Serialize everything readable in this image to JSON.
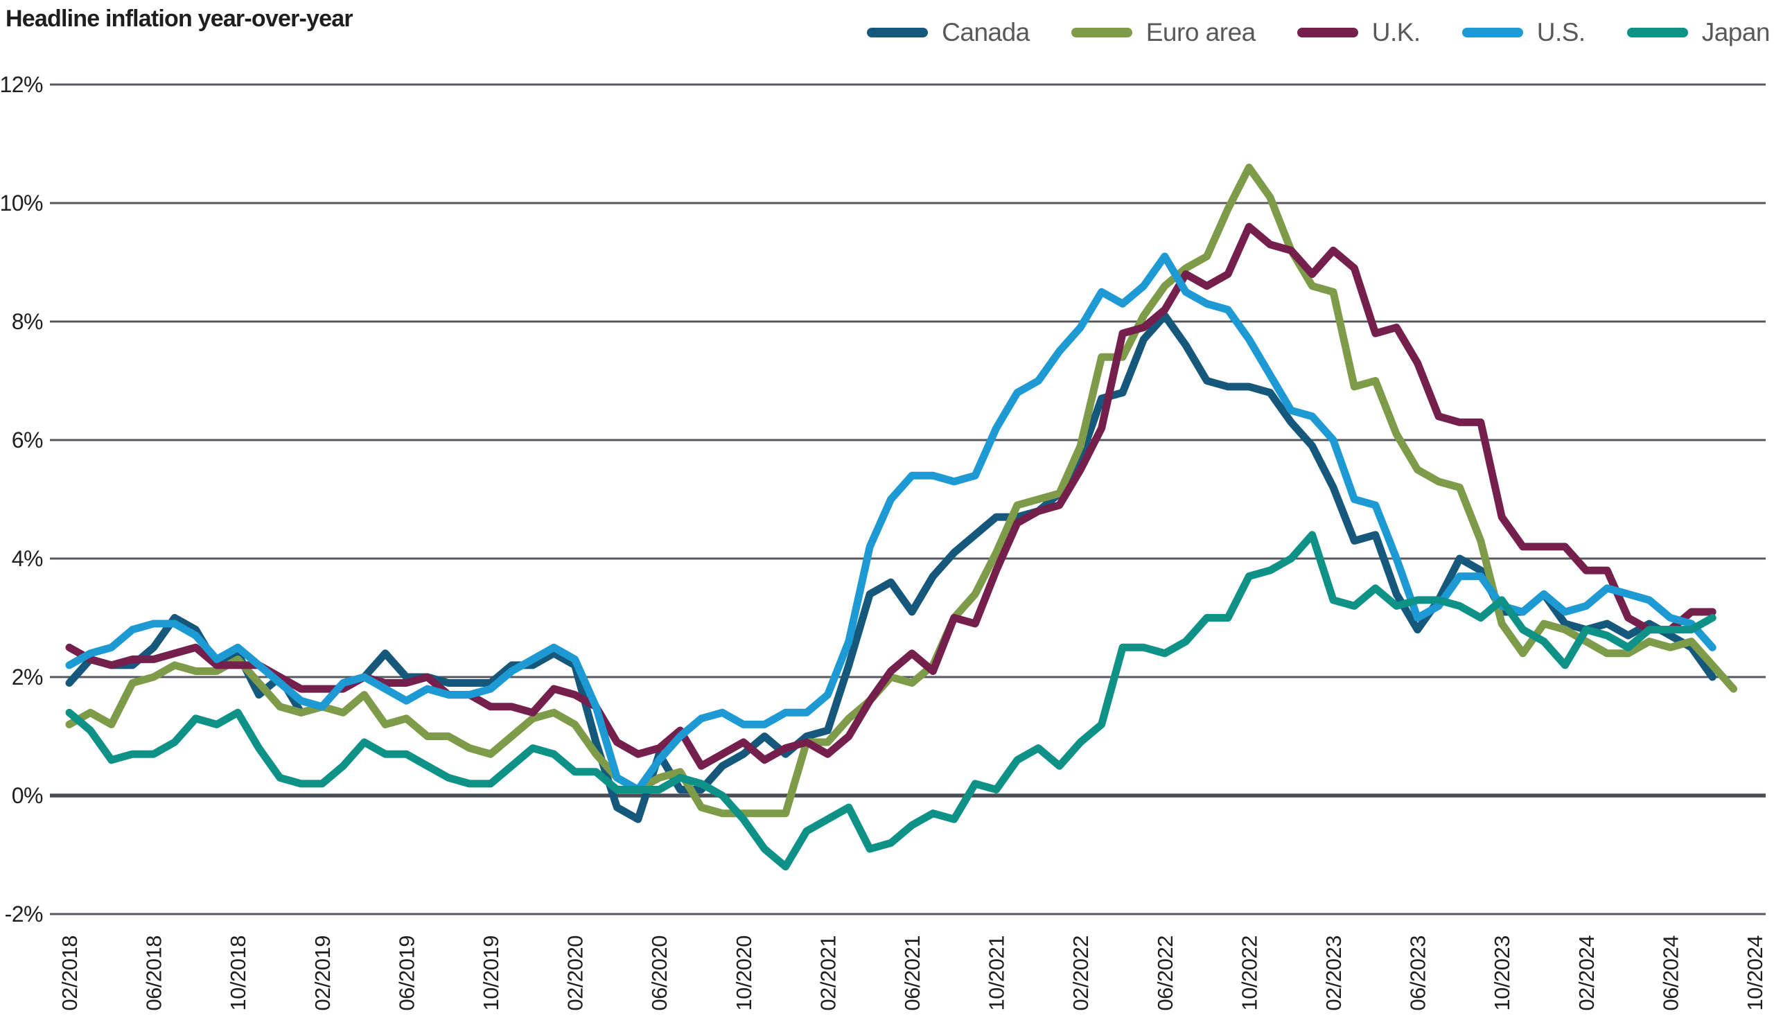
{
  "title": "Headline inflation year-over-year",
  "chart_data": {
    "type": "line",
    "title": "Headline inflation year-over-year",
    "x_start": "02/2018",
    "x_interval": "monthly",
    "grid": true,
    "legend_position": "top-right",
    "ylim": [
      -2,
      12
    ],
    "y_ticks": [
      {
        "label": "12%",
        "value": 12
      },
      {
        "label": "10%",
        "value": 10
      },
      {
        "label": "8%",
        "value": 8
      },
      {
        "label": "6%",
        "value": 6
      },
      {
        "label": "4%",
        "value": 4
      },
      {
        "label": "2%",
        "value": 2
      },
      {
        "label": "0%",
        "value": 0
      },
      {
        "label": "-2%",
        "value": -2
      }
    ],
    "x_tick_labels": [
      "02/2018",
      "06/2018",
      "10/2018",
      "02/2019",
      "06/2019",
      "10/2019",
      "02/2020",
      "06/2020",
      "10/2020",
      "02/2021",
      "06/2021",
      "10/2021",
      "02/2022",
      "06/2022",
      "10/2022",
      "02/2023",
      "06/2023",
      "10/2023",
      "02/2024",
      "06/2024",
      "10/2024"
    ],
    "series": [
      {
        "name": "Canada",
        "color": "#15587B",
        "values": [
          1.9,
          2.3,
          2.2,
          2.2,
          2.5,
          3.0,
          2.8,
          2.2,
          2.4,
          1.7,
          2.0,
          1.4,
          1.5,
          1.9,
          2.0,
          2.4,
          2.0,
          2.0,
          1.9,
          1.9,
          1.9,
          2.2,
          2.2,
          2.4,
          2.2,
          0.9,
          -0.2,
          -0.4,
          0.7,
          0.1,
          0.1,
          0.5,
          0.7,
          1.0,
          0.7,
          1.0,
          1.1,
          2.2,
          3.4,
          3.6,
          3.1,
          3.7,
          4.1,
          4.4,
          4.7,
          4.7,
          4.8,
          5.1,
          5.7,
          6.7,
          6.8,
          7.7,
          8.1,
          7.6,
          7.0,
          6.9,
          6.9,
          6.8,
          6.3,
          5.9,
          5.2,
          4.3,
          4.4,
          3.4,
          2.8,
          3.3,
          4.0,
          3.8,
          3.1,
          3.1,
          3.4,
          2.9,
          2.8,
          2.9,
          2.7,
          2.9,
          2.7,
          2.5,
          2.0
        ]
      },
      {
        "name": "Euro area",
        "color": "#7E9B49",
        "values": [
          1.2,
          1.4,
          1.2,
          1.9,
          2.0,
          2.2,
          2.1,
          2.1,
          2.3,
          1.9,
          1.5,
          1.4,
          1.5,
          1.4,
          1.7,
          1.2,
          1.3,
          1.0,
          1.0,
          0.8,
          0.7,
          1.0,
          1.3,
          1.4,
          1.2,
          0.7,
          0.3,
          0.1,
          0.3,
          0.4,
          -0.2,
          -0.3,
          -0.3,
          -0.3,
          -0.3,
          0.9,
          0.9,
          1.3,
          1.6,
          2.0,
          1.9,
          2.2,
          3.0,
          3.4,
          4.1,
          4.9,
          5.0,
          5.1,
          5.9,
          7.4,
          7.4,
          8.1,
          8.6,
          8.9,
          9.1,
          9.9,
          10.6,
          10.1,
          9.2,
          8.6,
          8.5,
          6.9,
          7.0,
          6.1,
          5.5,
          5.3,
          5.2,
          4.3,
          2.9,
          2.4,
          2.9,
          2.8,
          2.6,
          2.4,
          2.4,
          2.6,
          2.5,
          2.6,
          2.2,
          1.8
        ]
      },
      {
        "name": "U.K.",
        "color": "#751F4C",
        "values": [
          2.5,
          2.3,
          2.2,
          2.3,
          2.3,
          2.4,
          2.5,
          2.2,
          2.2,
          2.2,
          2.0,
          1.8,
          1.8,
          1.8,
          2.0,
          1.9,
          1.9,
          2.0,
          1.7,
          1.7,
          1.5,
          1.5,
          1.4,
          1.8,
          1.7,
          1.5,
          0.9,
          0.7,
          0.8,
          1.1,
          0.5,
          0.7,
          0.9,
          0.6,
          0.8,
          0.9,
          0.7,
          1.0,
          1.6,
          2.1,
          2.4,
          2.1,
          3.0,
          2.9,
          3.8,
          4.6,
          4.8,
          4.9,
          5.5,
          6.2,
          7.8,
          7.9,
          8.2,
          8.8,
          8.6,
          8.8,
          9.6,
          9.3,
          9.2,
          8.8,
          9.2,
          8.9,
          7.8,
          7.9,
          7.3,
          6.4,
          6.3,
          6.3,
          4.7,
          4.2,
          4.2,
          4.2,
          3.8,
          3.8,
          3.0,
          2.8,
          2.8,
          3.1,
          3.1
        ]
      },
      {
        "name": "U.S.",
        "color": "#1D99D4",
        "values": [
          2.2,
          2.4,
          2.5,
          2.8,
          2.9,
          2.9,
          2.7,
          2.3,
          2.5,
          2.2,
          1.9,
          1.6,
          1.5,
          1.9,
          2.0,
          1.8,
          1.6,
          1.8,
          1.7,
          1.7,
          1.8,
          2.1,
          2.3,
          2.5,
          2.3,
          1.5,
          0.3,
          0.1,
          0.6,
          1.0,
          1.3,
          1.4,
          1.2,
          1.2,
          1.4,
          1.4,
          1.7,
          2.6,
          4.2,
          5.0,
          5.4,
          5.4,
          5.3,
          5.4,
          6.2,
          6.8,
          7.0,
          7.5,
          7.9,
          8.5,
          8.3,
          8.6,
          9.1,
          8.5,
          8.3,
          8.2,
          7.7,
          7.1,
          6.5,
          6.4,
          6.0,
          5.0,
          4.9,
          4.0,
          3.0,
          3.2,
          3.7,
          3.7,
          3.2,
          3.1,
          3.4,
          3.1,
          3.2,
          3.5,
          3.4,
          3.3,
          3.0,
          2.9,
          2.5
        ]
      },
      {
        "name": "Japan",
        "color": "#0E9187",
        "values": [
          1.4,
          1.1,
          0.6,
          0.7,
          0.7,
          0.9,
          1.3,
          1.2,
          1.4,
          0.8,
          0.3,
          0.2,
          0.2,
          0.5,
          0.9,
          0.7,
          0.7,
          0.5,
          0.3,
          0.2,
          0.2,
          0.5,
          0.8,
          0.7,
          0.4,
          0.4,
          0.1,
          0.1,
          0.1,
          0.3,
          0.2,
          0.0,
          -0.4,
          -0.9,
          -1.2,
          -0.6,
          -0.4,
          -0.2,
          -0.9,
          -0.8,
          -0.5,
          -0.3,
          -0.4,
          0.2,
          0.1,
          0.6,
          0.8,
          0.5,
          0.9,
          1.2,
          2.5,
          2.5,
          2.4,
          2.6,
          3.0,
          3.0,
          3.7,
          3.8,
          4.0,
          4.4,
          3.3,
          3.2,
          3.5,
          3.2,
          3.3,
          3.3,
          3.2,
          3.0,
          3.3,
          2.8,
          2.6,
          2.2,
          2.8,
          2.7,
          2.5,
          2.8,
          2.8,
          2.8,
          3.0
        ]
      }
    ]
  }
}
